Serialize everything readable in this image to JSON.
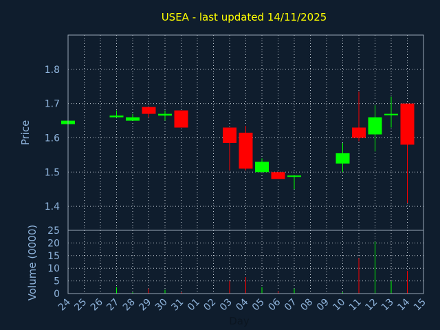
{
  "chart_data": {
    "type": "candlestick",
    "title": "USEA - last updated 14/11/2025",
    "xlabel": "Day",
    "ylabel": "Price",
    "ylabel2": "Volume (0000)",
    "grid": true,
    "ylim": [
      1.33,
      1.9
    ],
    "yticks": [
      "1.4",
      "1.5",
      "1.6",
      "1.7",
      "1.8"
    ],
    "vol_ylim": [
      0,
      25
    ],
    "vol_yticks": [
      "0",
      "5",
      "10",
      "15",
      "20",
      "25"
    ],
    "x_ticks": [
      "24",
      "25",
      "26",
      "27",
      "28",
      "29",
      "30",
      "31",
      "01",
      "02",
      "03",
      "04",
      "05",
      "06",
      "07",
      "08",
      "09",
      "10",
      "11",
      "12",
      "13",
      "14",
      "15"
    ],
    "colors": {
      "up": "#00ff00",
      "down": "#ff0000",
      "title": "#ffff00",
      "axis_text": "#8fb4dc",
      "background": "#0f1d2d"
    },
    "candles": [
      {
        "day": "24",
        "open": 1.64,
        "close": 1.65,
        "high": 1.65,
        "low": 1.64,
        "volume": 0.0
      },
      {
        "day": "27",
        "open": 1.66,
        "close": 1.665,
        "high": 1.68,
        "low": 1.66,
        "volume": 2.5
      },
      {
        "day": "28",
        "open": 1.65,
        "close": 1.66,
        "high": 1.67,
        "low": 1.65,
        "volume": 0.5
      },
      {
        "day": "29",
        "open": 1.69,
        "close": 1.67,
        "high": 1.69,
        "low": 1.66,
        "volume": 2.0
      },
      {
        "day": "30",
        "open": 1.665,
        "close": 1.67,
        "high": 1.68,
        "low": 1.65,
        "volume": 1.5
      },
      {
        "day": "31",
        "open": 1.68,
        "close": 1.63,
        "high": 1.68,
        "low": 1.63,
        "volume": 0.5
      },
      {
        "day": "03",
        "open": 1.63,
        "close": 1.585,
        "high": 1.63,
        "low": 1.505,
        "volume": 5.0
      },
      {
        "day": "04",
        "open": 1.615,
        "close": 1.51,
        "high": 1.635,
        "low": 1.505,
        "volume": 6.5
      },
      {
        "day": "05",
        "open": 1.5,
        "close": 1.53,
        "high": 1.54,
        "low": 1.5,
        "volume": 2.5
      },
      {
        "day": "06",
        "open": 1.5,
        "close": 1.48,
        "high": 1.5,
        "low": 1.48,
        "volume": 1.0
      },
      {
        "day": "07",
        "open": 1.488,
        "close": 1.49,
        "high": 1.49,
        "low": 1.45,
        "volume": 2.0
      },
      {
        "day": "10",
        "open": 1.525,
        "close": 1.555,
        "high": 1.585,
        "low": 1.5,
        "volume": 0.5
      },
      {
        "day": "11",
        "open": 1.63,
        "close": 1.6,
        "high": 1.735,
        "low": 1.59,
        "volume": 14.0
      },
      {
        "day": "12",
        "open": 1.61,
        "close": 1.66,
        "high": 1.695,
        "low": 1.56,
        "volume": 20.5
      },
      {
        "day": "13",
        "open": 1.668,
        "close": 1.67,
        "high": 1.72,
        "low": 1.63,
        "volume": 5.0
      },
      {
        "day": "14",
        "open": 1.7,
        "close": 1.58,
        "high": 1.7,
        "low": 1.41,
        "volume": 9.0
      }
    ]
  }
}
